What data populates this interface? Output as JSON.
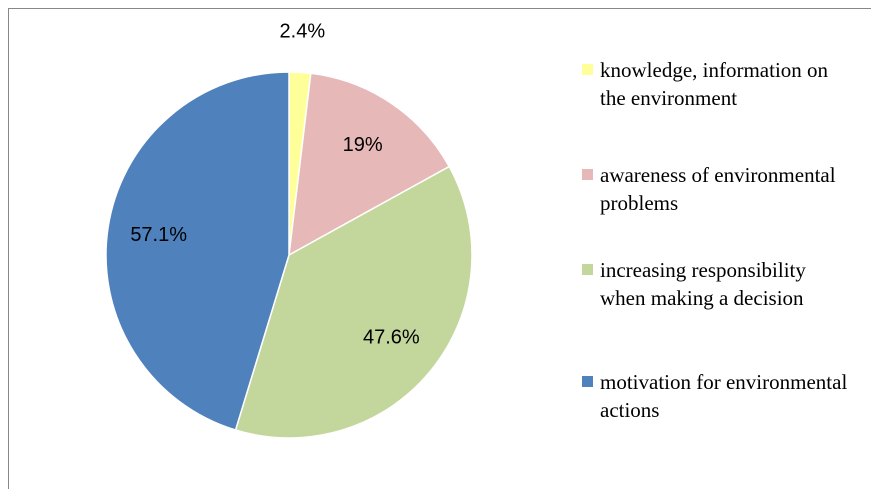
{
  "chart_data": {
    "type": "pie",
    "categories": [
      "knowledge, information on the environment",
      "awareness of environmental problems",
      "increasing responsibility when making a decision",
      "motivation for environmental actions"
    ],
    "values": [
      2.4,
      19,
      47.6,
      57.1
    ],
    "value_labels": [
      "2.4%",
      "19%",
      "47.6%",
      "57.1%"
    ],
    "colors": [
      "#ffff99",
      "#e6b9b8",
      "#c3d69b",
      "#4f81bd"
    ],
    "legend": "right"
  }
}
